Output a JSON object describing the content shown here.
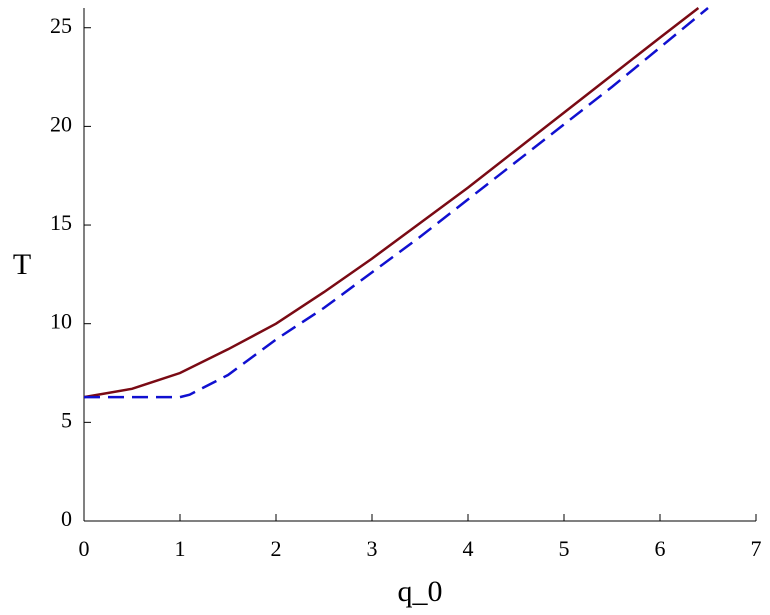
{
  "chart_data": {
    "type": "line",
    "xlabel": "q_0",
    "ylabel": "T",
    "xlim": [
      0,
      7
    ],
    "ylim": [
      0,
      26
    ],
    "xticks": [
      0,
      1,
      2,
      3,
      4,
      5,
      6,
      7
    ],
    "yticks": [
      0,
      5,
      10,
      15,
      20,
      25
    ],
    "series": [
      {
        "color": "#7a0a14",
        "dash": false,
        "x": [
          0,
          0.5,
          1,
          1.5,
          2,
          2.5,
          3,
          3.5,
          4,
          4.5,
          5,
          5.5,
          6,
          6.4
        ],
        "values": [
          6.28,
          6.7,
          7.5,
          8.7,
          10.0,
          11.6,
          13.3,
          15.1,
          16.9,
          18.8,
          20.7,
          22.6,
          24.5,
          26.0
        ]
      },
      {
        "color": "#1010d0",
        "dash": true,
        "x": [
          0,
          0.5,
          1,
          1.1,
          1.5,
          2,
          2.5,
          3,
          3.5,
          4,
          4.5,
          5,
          5.5,
          6,
          6.5
        ],
        "values": [
          6.28,
          6.28,
          6.28,
          6.4,
          7.4,
          9.2,
          10.8,
          12.6,
          14.4,
          16.3,
          18.2,
          20.1,
          22.0,
          24.0,
          26.0
        ]
      }
    ]
  }
}
